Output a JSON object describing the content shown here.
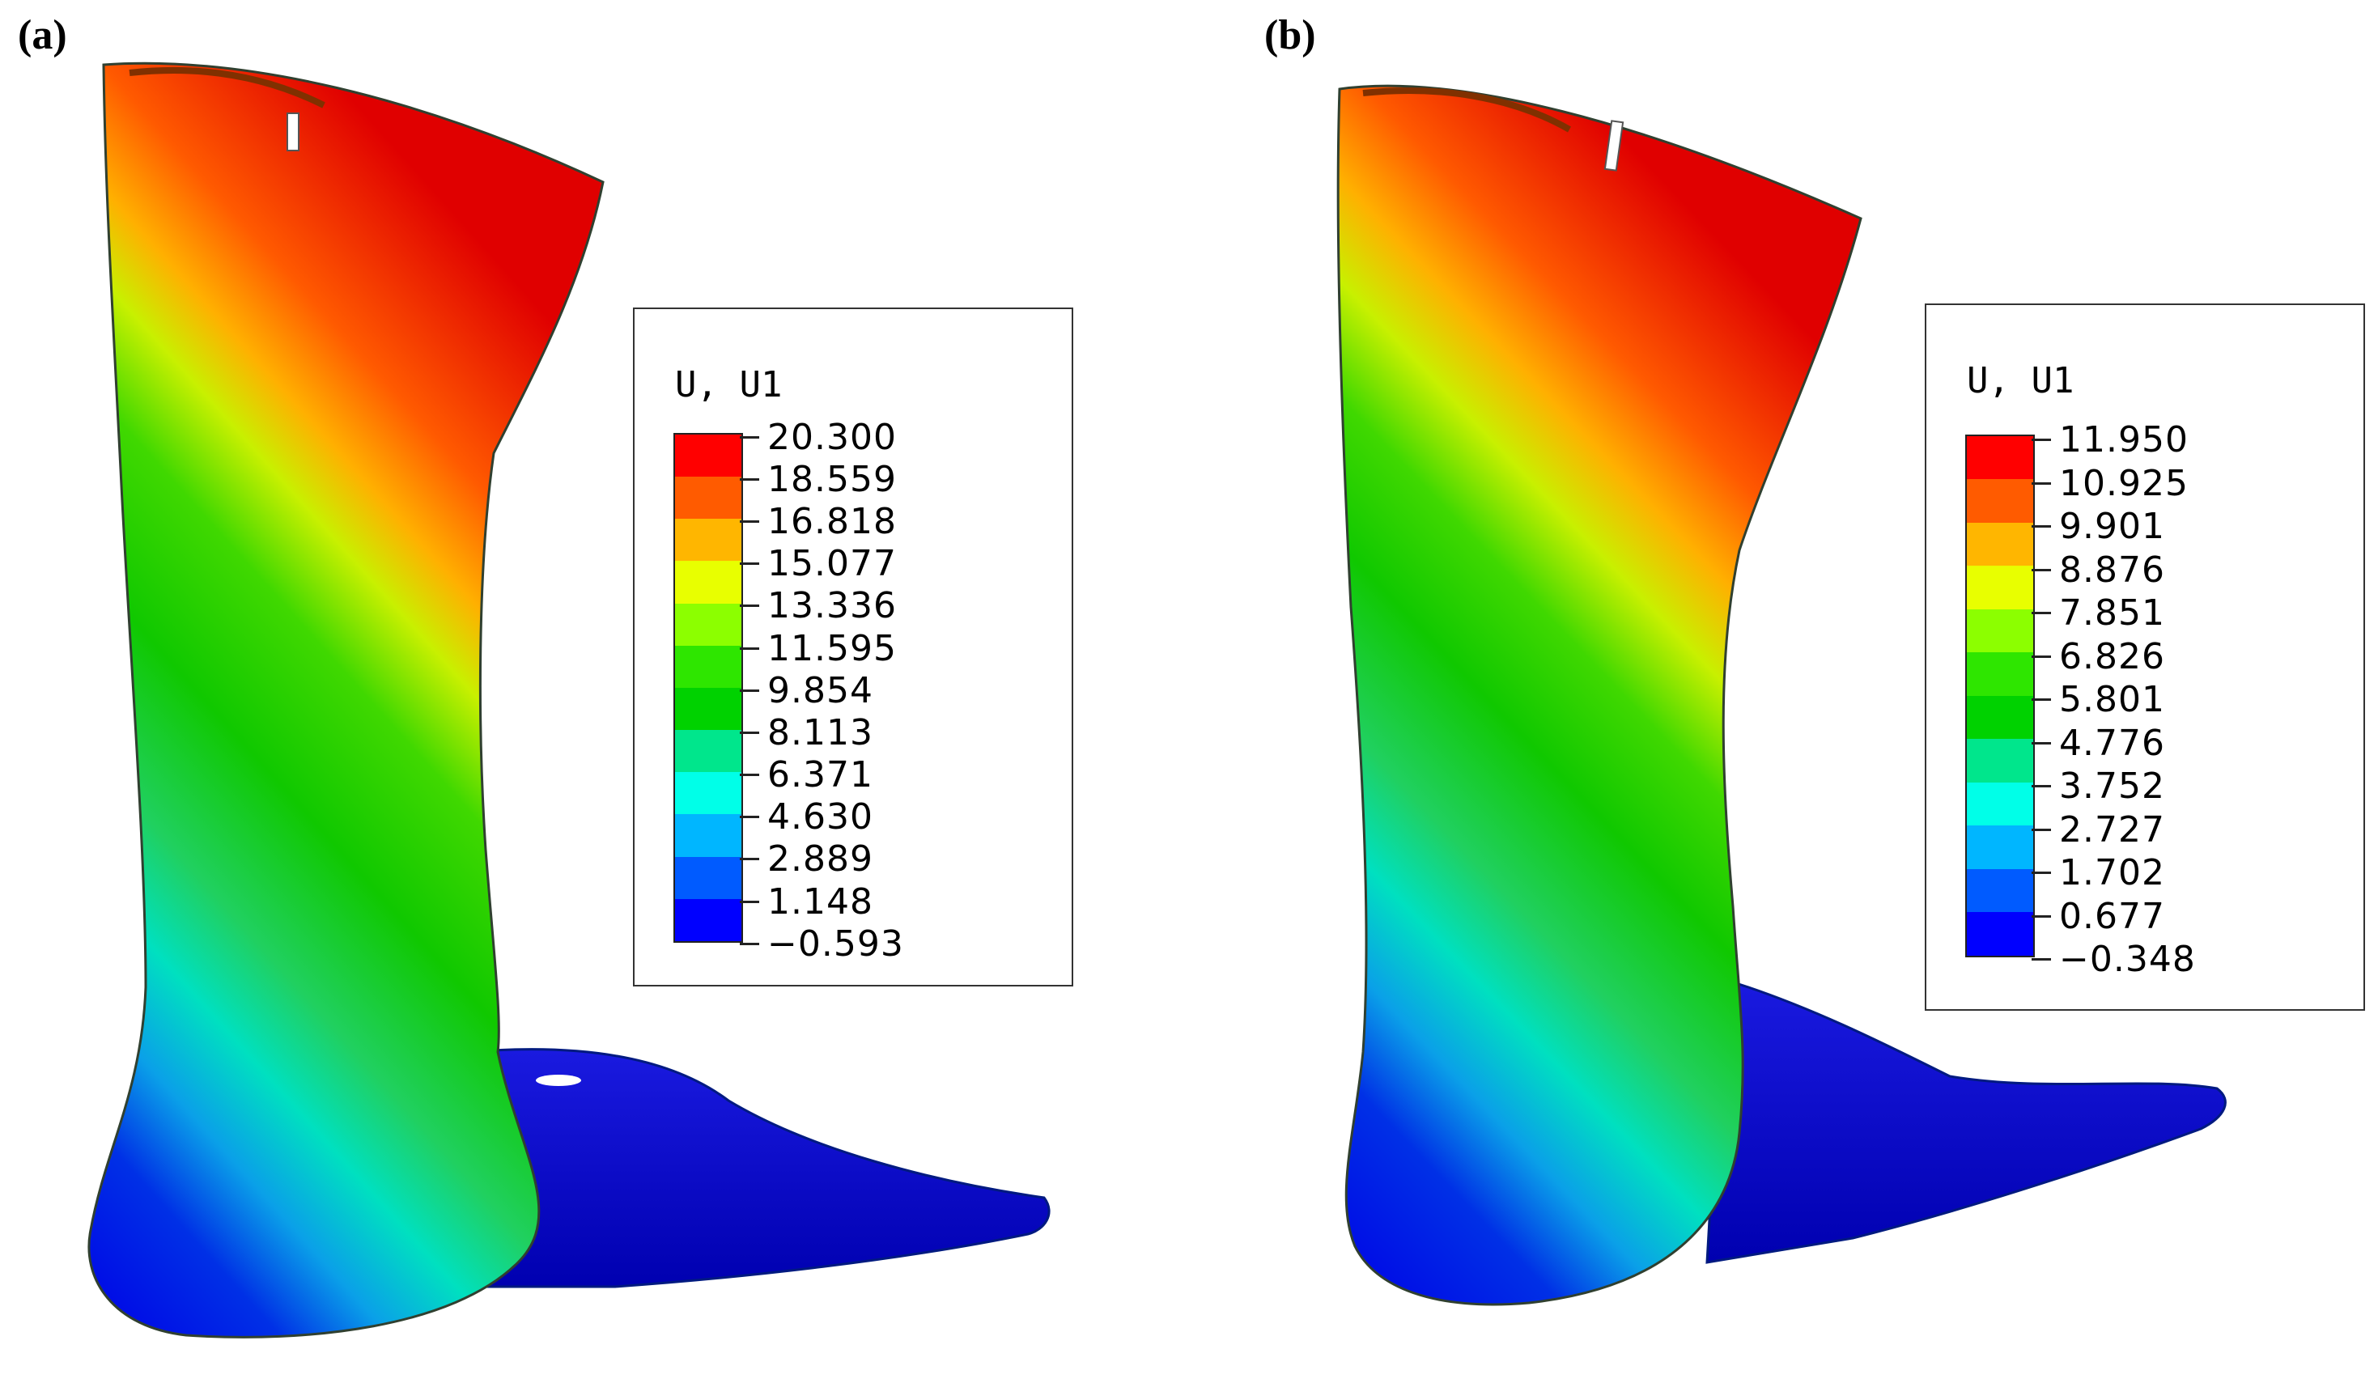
{
  "panels": [
    {
      "label": "(a)",
      "legend_title": "U, U1",
      "values": [
        "20.300",
        "18.559",
        "16.818",
        "15.077",
        "13.336",
        "11.595",
        "9.854",
        "8.113",
        "6.371",
        "4.630",
        "2.889",
        "1.148",
        "−0.593"
      ]
    },
    {
      "label": "(b)",
      "legend_title": "U, U1",
      "values": [
        "11.950",
        "10.925",
        "9.901",
        "8.876",
        "7.851",
        "6.826",
        "5.801",
        "4.776",
        "3.752",
        "2.727",
        "1.702",
        "0.677",
        "−0.348"
      ]
    }
  ],
  "colors": {
    "contour_bands": [
      "#ff0000",
      "#ff5b00",
      "#ffb600",
      "#e8ff00",
      "#8cff00",
      "#2ee600",
      "#00d200",
      "#00e68c",
      "#00ffe8",
      "#00b6ff",
      "#005bff",
      "#0000ff"
    ]
  }
}
